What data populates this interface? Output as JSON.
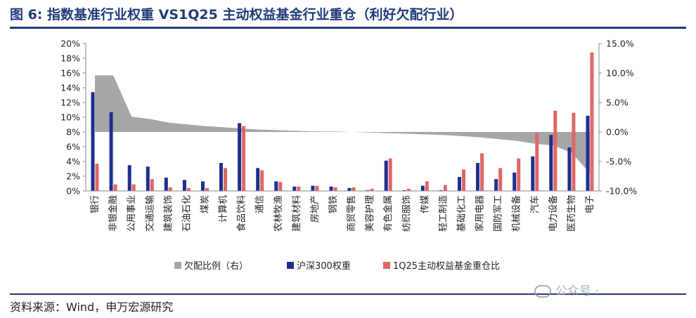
{
  "title": "图 6:  指数基准行业权重 VS1Q25 主动权益基金行业重仓（利好欠配行业）",
  "source": "资料来源：Wind，申万宏源研究",
  "watermark": "公众号 · ",
  "colors": {
    "area": "#a6a6a6",
    "bar1": "#1f2f8f",
    "bar2": "#e06666",
    "accent": "#1f3a7a"
  },
  "chart_data": {
    "type": "bar",
    "categories": [
      "银行",
      "非银金融",
      "公用事业",
      "交通运输",
      "建筑装饰",
      "石油石化",
      "煤炭",
      "计算机",
      "食品饮料",
      "通信",
      "农林牧渔",
      "建筑材料",
      "房地产",
      "钢铁",
      "商贸零售",
      "美容护理",
      "有色金属",
      "纺织服饰",
      "传媒",
      "轻工制造",
      "基础化工",
      "家用电器",
      "国防军工",
      "机械设备",
      "汽车",
      "电力设备",
      "医药生物",
      "电子"
    ],
    "series": [
      {
        "name": "欠配比例（右）",
        "type": "area",
        "axis": "right",
        "values": [
          9.6,
          9.6,
          2.6,
          2.2,
          1.6,
          1.3,
          1.0,
          0.8,
          0.6,
          0.4,
          0.3,
          0.2,
          0.1,
          0.1,
          0.0,
          -0.1,
          -0.2,
          -0.3,
          -0.4,
          -0.5,
          -0.7,
          -0.9,
          -1.2,
          -1.5,
          -2.0,
          -2.3,
          -3.5,
          -7.0
        ]
      },
      {
        "name": "沪深300权重",
        "type": "bar",
        "axis": "left",
        "values": [
          13.4,
          10.7,
          3.5,
          3.3,
          1.8,
          1.5,
          1.3,
          3.8,
          9.2,
          3.1,
          1.3,
          0.6,
          0.7,
          0.6,
          0.4,
          0.1,
          4.1,
          0.1,
          0.7,
          0.1,
          1.9,
          3.8,
          1.6,
          2.5,
          4.7,
          7.6,
          5.9,
          10.2
        ]
      },
      {
        "name": "1Q25主动权益基金重仓比",
        "type": "bar",
        "axis": "left",
        "values": [
          3.7,
          0.9,
          0.9,
          1.6,
          0.5,
          0.4,
          0.4,
          3.1,
          8.8,
          2.8,
          1.2,
          0.6,
          0.7,
          0.5,
          0.5,
          0.3,
          4.4,
          0.3,
          1.3,
          0.8,
          2.9,
          5.1,
          3.1,
          4.4,
          7.9,
          10.9,
          10.6,
          18.8
        ]
      }
    ],
    "yticks_left": [
      "0%",
      "2%",
      "4%",
      "6%",
      "8%",
      "10%",
      "12%",
      "14%",
      "16%",
      "18%",
      "20%"
    ],
    "yticks_right": [
      "-10.0%",
      "-5.0%",
      "0.0%",
      "5.0%",
      "10.0%",
      "15.0%"
    ],
    "ylim_left": [
      0,
      20
    ],
    "ylim_right": [
      -10,
      15
    ],
    "legend_position": "bottom",
    "grid": false
  }
}
